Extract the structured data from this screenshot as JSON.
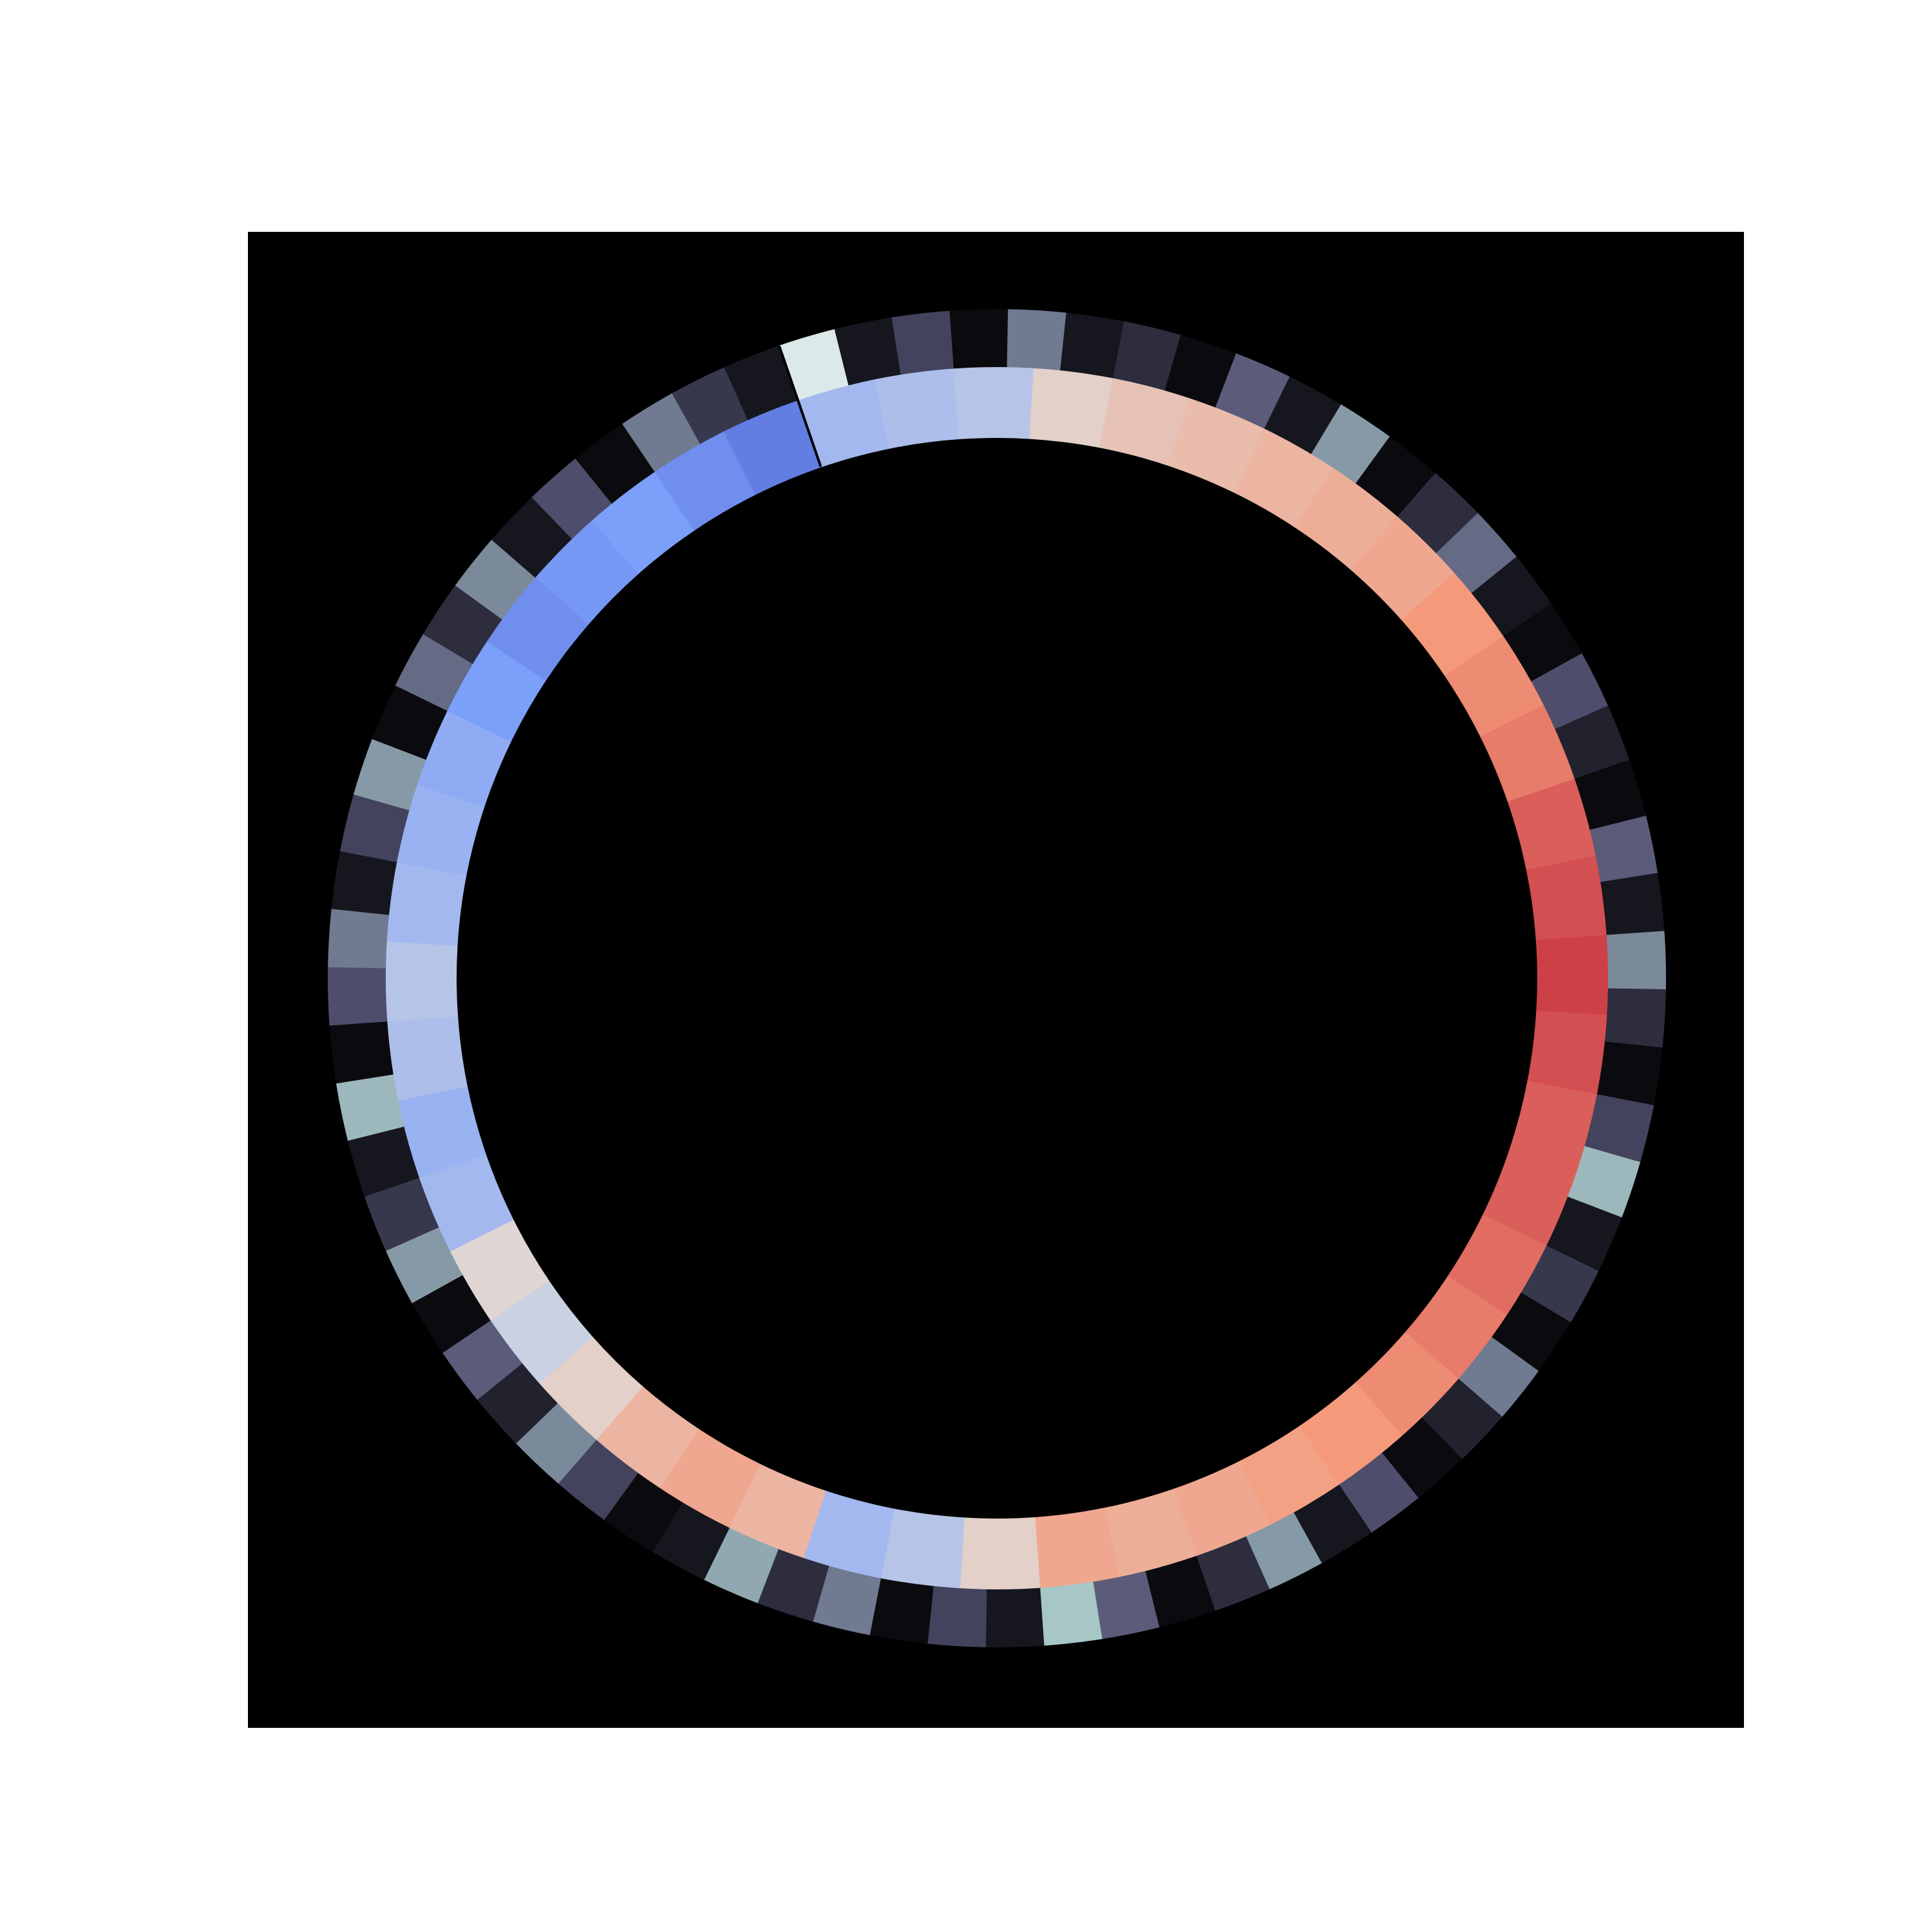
{
  "chart_data": {
    "type": "heatmap",
    "polar": true,
    "rings": [
      {
        "colormap": "coolwarm",
        "vlim": [
          -1,
          1
        ],
        "values": [
          -0.3,
          -0.25,
          -0.2,
          0.1,
          0.2,
          0.25,
          0.3,
          0.35,
          0.4,
          0.5,
          0.55,
          0.6,
          0.7,
          0.75,
          0.8,
          0.75,
          0.7,
          0.7,
          0.65,
          0.6,
          0.55,
          0.5,
          0.45,
          0.4,
          0.35,
          0.4,
          0.1,
          -0.2,
          -0.3,
          0.3,
          0.4,
          0.3,
          0.1,
          -0.1,
          0.05,
          -0.3,
          -0.35,
          -0.25,
          -0.2,
          -0.3,
          -0.35,
          -0.4,
          -0.5,
          -0.6,
          -0.55,
          -0.5,
          -0.6,
          -0.7
        ]
      },
      {
        "colormap": "bone",
        "vlim": [
          0,
          1
        ],
        "values": [
          0.9,
          0.1,
          0.3,
          0.05,
          0.5,
          0.1,
          0.2,
          0.05,
          0.4,
          0.1,
          0.6,
          0.05,
          0.2,
          0.45,
          0.1,
          0.05,
          0.35,
          0.15,
          0.05,
          0.4,
          0.1,
          0.55,
          0.2,
          0.05,
          0.3,
          0.7,
          0.1,
          0.25,
          0.05,
          0.5,
          0.15,
          0.05,
          0.35,
          0.1,
          0.6,
          0.2,
          0.05,
          0.4,
          0.75,
          0.1,
          0.3,
          0.05,
          0.5,
          0.2,
          0.65,
          0.1,
          0.05,
          0.3,
          0.55,
          0.15,
          0.4,
          0.05,
          0.6,
          0.25,
          0.1,
          0.7,
          0.05,
          0.35,
          0.5,
          0.1,
          0.3,
          0.6,
          0.05,
          0.45,
          0.2,
          0.55,
          0.1,
          0.35,
          0.05,
          0.5,
          0.25,
          0.1
        ]
      }
    ]
  }
}
